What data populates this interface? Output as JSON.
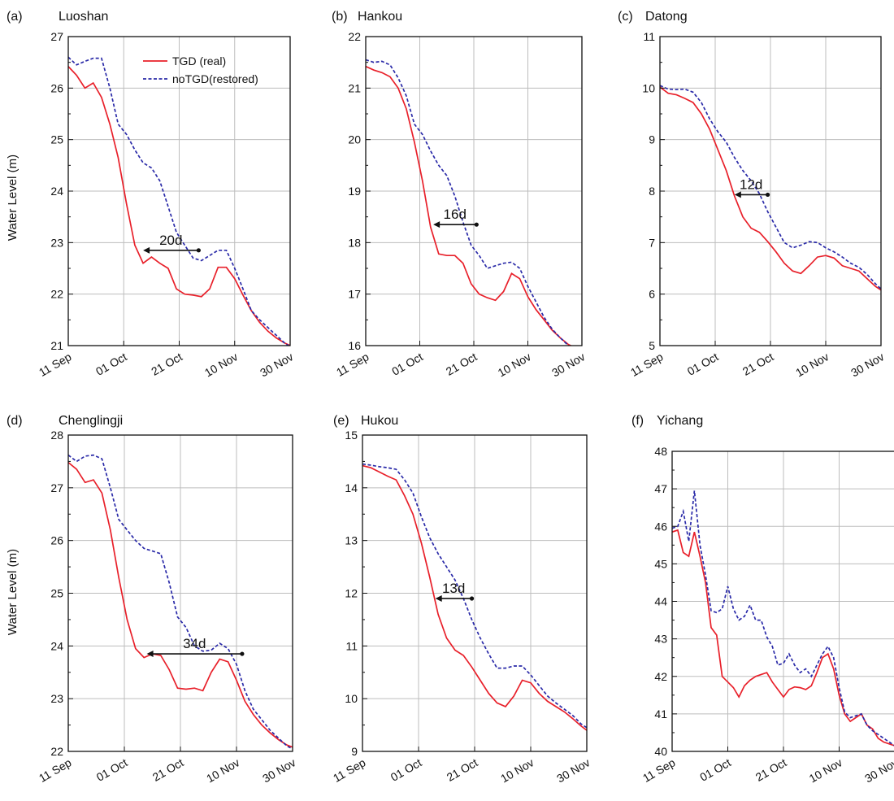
{
  "figure": {
    "ylabel": "Water Level (m)"
  },
  "chart_data": [
    {
      "panel": "(a)",
      "title": "Luoshan",
      "type": "line",
      "xlim": [
        0,
        80
      ],
      "ylim": [
        21,
        27
      ],
      "xticks": [
        "11 Sep",
        "01 Oct",
        "21 Oct",
        "10 Nov",
        "30 Nov"
      ],
      "yticks": [
        21,
        22,
        23,
        24,
        25,
        26,
        27
      ],
      "legend": "top-right",
      "series": [
        {
          "name": "TGD (real)",
          "color": "#e8202a",
          "dash": false,
          "x": [
            0,
            3,
            6,
            9,
            12,
            15,
            18,
            21,
            24,
            27,
            30,
            33,
            36,
            39,
            42,
            45,
            48,
            51,
            54,
            57,
            60,
            63,
            66,
            69,
            72,
            75,
            78,
            80
          ],
          "y": [
            26.42,
            26.25,
            26.0,
            26.1,
            25.82,
            25.3,
            24.65,
            23.75,
            22.95,
            22.6,
            22.72,
            22.6,
            22.5,
            22.1,
            22.0,
            21.98,
            21.95,
            22.1,
            22.52,
            22.52,
            22.3,
            21.98,
            21.68,
            21.45,
            21.28,
            21.15,
            21.05,
            21.0
          ]
        },
        {
          "name": "noTGD(restored)",
          "color": "#2a2aa8",
          "dash": true,
          "x": [
            0,
            3,
            6,
            9,
            12,
            15,
            18,
            21,
            24,
            27,
            30,
            33,
            36,
            39,
            42,
            45,
            48,
            51,
            54,
            57,
            60,
            63,
            66,
            69,
            72,
            75,
            78,
            80
          ],
          "y": [
            26.6,
            26.45,
            26.52,
            26.58,
            26.58,
            26.0,
            25.3,
            25.1,
            24.8,
            24.55,
            24.45,
            24.2,
            23.7,
            23.2,
            22.95,
            22.7,
            22.65,
            22.75,
            22.85,
            22.85,
            22.5,
            22.1,
            21.68,
            21.5,
            21.35,
            21.2,
            21.05,
            20.98
          ]
        }
      ],
      "annotation": {
        "label": "20d",
        "x_start": 27,
        "x_end": 47,
        "y": 22.85
      }
    },
    {
      "panel": "(b)",
      "title": "Hankou",
      "type": "line",
      "xlim": [
        0,
        80
      ],
      "ylim": [
        16,
        22
      ],
      "xticks": [
        "11 Sep",
        "01 Oct",
        "21 Oct",
        "10 Nov",
        "30 Nov"
      ],
      "yticks": [
        16,
        17,
        18,
        19,
        20,
        21,
        22
      ],
      "series": [
        {
          "name": "TGD (real)",
          "color": "#e8202a",
          "dash": false,
          "x": [
            0,
            3,
            6,
            9,
            12,
            15,
            18,
            21,
            24,
            27,
            30,
            33,
            36,
            39,
            42,
            45,
            48,
            51,
            54,
            57,
            60,
            63,
            66,
            69,
            72,
            75,
            78,
            80
          ],
          "y": [
            21.42,
            21.35,
            21.3,
            21.22,
            21.0,
            20.6,
            19.95,
            19.2,
            18.3,
            17.78,
            17.75,
            17.75,
            17.6,
            17.2,
            17.0,
            16.93,
            16.88,
            17.05,
            17.4,
            17.3,
            16.95,
            16.7,
            16.5,
            16.3,
            16.15,
            16.02,
            15.95,
            15.95
          ]
        },
        {
          "name": "noTGD(restored)",
          "color": "#2a2aa8",
          "dash": true,
          "x": [
            0,
            3,
            6,
            9,
            12,
            15,
            18,
            21,
            24,
            27,
            30,
            33,
            36,
            39,
            42,
            45,
            48,
            51,
            54,
            57,
            60,
            63,
            66,
            69,
            72,
            75,
            78,
            80
          ],
          "y": [
            21.55,
            21.5,
            21.52,
            21.45,
            21.2,
            20.85,
            20.3,
            20.1,
            19.78,
            19.5,
            19.3,
            18.9,
            18.4,
            17.95,
            17.75,
            17.5,
            17.55,
            17.6,
            17.62,
            17.5,
            17.15,
            16.85,
            16.55,
            16.32,
            16.15,
            16.0,
            15.95,
            15.93
          ]
        }
      ],
      "annotation": {
        "label": "16d",
        "x_start": 25,
        "x_end": 41,
        "y": 18.35
      }
    },
    {
      "panel": "(c)",
      "title": "Datong",
      "type": "line",
      "xlim": [
        0,
        80
      ],
      "ylim": [
        5,
        11
      ],
      "xticks": [
        "11 Sep",
        "01 Oct",
        "21 Oct",
        "10 Nov",
        "30 Nov"
      ],
      "yticks": [
        5,
        6,
        7,
        8,
        9,
        10,
        11
      ],
      "series": [
        {
          "name": "TGD (real)",
          "color": "#e8202a",
          "dash": false,
          "x": [
            0,
            3,
            6,
            9,
            12,
            15,
            18,
            21,
            24,
            27,
            30,
            33,
            36,
            39,
            42,
            45,
            48,
            51,
            54,
            57,
            60,
            63,
            66,
            69,
            72,
            75,
            78,
            80
          ],
          "y": [
            10.02,
            9.9,
            9.87,
            9.8,
            9.72,
            9.5,
            9.2,
            8.8,
            8.4,
            7.9,
            7.5,
            7.28,
            7.2,
            7.02,
            6.82,
            6.6,
            6.45,
            6.4,
            6.55,
            6.72,
            6.75,
            6.7,
            6.55,
            6.5,
            6.45,
            6.3,
            6.15,
            6.08
          ]
        },
        {
          "name": "noTGD(restored)",
          "color": "#2a2aa8",
          "dash": true,
          "x": [
            0,
            3,
            6,
            9,
            12,
            15,
            18,
            21,
            24,
            27,
            30,
            33,
            36,
            39,
            42,
            45,
            48,
            51,
            54,
            57,
            60,
            63,
            66,
            69,
            72,
            75,
            78,
            80
          ],
          "y": [
            10.05,
            9.98,
            9.97,
            9.98,
            9.92,
            9.72,
            9.4,
            9.15,
            8.95,
            8.65,
            8.4,
            8.2,
            7.95,
            7.6,
            7.3,
            7.0,
            6.9,
            6.95,
            7.02,
            7.0,
            6.9,
            6.82,
            6.72,
            6.6,
            6.52,
            6.38,
            6.2,
            6.1
          ]
        }
      ],
      "annotation": {
        "label": "12d",
        "x_start": 27,
        "x_end": 39,
        "y": 7.93
      }
    },
    {
      "panel": "(d)",
      "title": "Chenglingji",
      "type": "line",
      "xlim": [
        0,
        80
      ],
      "ylim": [
        22,
        28
      ],
      "xticks": [
        "11 Sep",
        "01 Oct",
        "21 Oct",
        "10 Nov",
        "30 Nov"
      ],
      "yticks": [
        22,
        23,
        24,
        25,
        26,
        27,
        28
      ],
      "series": [
        {
          "name": "TGD (real)",
          "color": "#e8202a",
          "dash": false,
          "x": [
            0,
            3,
            6,
            9,
            12,
            15,
            18,
            21,
            24,
            27,
            30,
            33,
            36,
            39,
            42,
            45,
            48,
            51,
            54,
            57,
            60,
            63,
            66,
            69,
            72,
            75,
            78,
            80
          ],
          "y": [
            27.48,
            27.35,
            27.1,
            27.15,
            26.9,
            26.2,
            25.3,
            24.5,
            23.95,
            23.78,
            23.85,
            23.82,
            23.55,
            23.2,
            23.18,
            23.2,
            23.15,
            23.5,
            23.75,
            23.7,
            23.35,
            22.95,
            22.7,
            22.5,
            22.35,
            22.22,
            22.12,
            22.08
          ]
        },
        {
          "name": "noTGD(restored)",
          "color": "#2a2aa8",
          "dash": true,
          "x": [
            0,
            3,
            6,
            9,
            12,
            15,
            18,
            21,
            24,
            27,
            30,
            33,
            36,
            39,
            42,
            45,
            48,
            51,
            54,
            57,
            60,
            63,
            66,
            69,
            72,
            75,
            78,
            80
          ],
          "y": [
            27.62,
            27.5,
            27.6,
            27.62,
            27.55,
            27.0,
            26.4,
            26.2,
            26.0,
            25.85,
            25.8,
            25.75,
            25.2,
            24.55,
            24.35,
            24.0,
            23.9,
            23.92,
            24.05,
            23.95,
            23.65,
            23.15,
            22.8,
            22.6,
            22.4,
            22.25,
            22.1,
            22.05
          ]
        }
      ],
      "annotation": {
        "label": "34d",
        "x_start": 28,
        "x_end": 62,
        "y": 23.85
      }
    },
    {
      "panel": "(e)",
      "title": "Hukou",
      "type": "line",
      "xlim": [
        0,
        80
      ],
      "ylim": [
        9,
        15
      ],
      "xticks": [
        "11 Sep",
        "01 Oct",
        "21 Oct",
        "10 Nov",
        "30 Nov"
      ],
      "yticks": [
        9,
        10,
        11,
        12,
        13,
        14,
        15
      ],
      "series": [
        {
          "name": "TGD (real)",
          "color": "#e8202a",
          "dash": false,
          "x": [
            0,
            3,
            6,
            9,
            12,
            15,
            18,
            21,
            24,
            27,
            30,
            33,
            36,
            39,
            42,
            45,
            48,
            51,
            54,
            57,
            60,
            63,
            66,
            69,
            72,
            75,
            78,
            80
          ],
          "y": [
            14.42,
            14.38,
            14.3,
            14.22,
            14.15,
            13.85,
            13.5,
            12.95,
            12.3,
            11.6,
            11.15,
            10.92,
            10.82,
            10.6,
            10.35,
            10.1,
            9.92,
            9.85,
            10.05,
            10.35,
            10.3,
            10.1,
            9.95,
            9.85,
            9.75,
            9.62,
            9.48,
            9.4
          ]
        },
        {
          "name": "noTGD(restored)",
          "color": "#2a2aa8",
          "dash": true,
          "x": [
            0,
            3,
            6,
            9,
            12,
            15,
            18,
            21,
            24,
            27,
            30,
            33,
            36,
            39,
            42,
            45,
            48,
            51,
            54,
            57,
            60,
            63,
            66,
            69,
            72,
            75,
            78,
            80
          ],
          "y": [
            14.45,
            14.43,
            14.4,
            14.38,
            14.35,
            14.15,
            13.9,
            13.45,
            13.05,
            12.75,
            12.5,
            12.25,
            11.9,
            11.5,
            11.15,
            10.85,
            10.58,
            10.58,
            10.62,
            10.62,
            10.45,
            10.25,
            10.05,
            9.92,
            9.8,
            9.68,
            9.52,
            9.45
          ]
        }
      ],
      "annotation": {
        "label": "13d",
        "x_start": 26,
        "x_end": 39,
        "y": 11.9
      }
    },
    {
      "panel": "(f)",
      "title": "Yichang",
      "type": "line",
      "xlim": [
        0,
        80
      ],
      "ylim": [
        40,
        48
      ],
      "xticks": [
        "11 Sep",
        "01 Oct",
        "21 Oct",
        "10 Nov",
        "30 Nov"
      ],
      "yticks": [
        40,
        41,
        42,
        43,
        44,
        45,
        46,
        47,
        48
      ],
      "series": [
        {
          "name": "TGD (real)",
          "color": "#e8202a",
          "dash": false,
          "x": [
            0,
            2,
            4,
            6,
            8,
            10,
            12,
            14,
            16,
            18,
            20,
            22,
            24,
            26,
            28,
            30,
            32,
            34,
            36,
            38,
            40,
            42,
            44,
            46,
            48,
            50,
            52,
            54,
            56,
            58,
            60,
            62,
            64,
            66,
            68,
            70,
            72,
            74,
            76,
            78,
            80
          ],
          "y": [
            45.85,
            45.9,
            45.3,
            45.2,
            45.85,
            45.2,
            44.5,
            43.3,
            43.1,
            42.0,
            41.85,
            41.7,
            41.45,
            41.75,
            41.9,
            42.0,
            42.05,
            42.1,
            41.85,
            41.65,
            41.45,
            41.65,
            41.72,
            41.7,
            41.65,
            41.75,
            42.1,
            42.5,
            42.6,
            42.2,
            41.5,
            41.0,
            40.8,
            40.9,
            41.0,
            40.7,
            40.6,
            40.35,
            40.25,
            40.2,
            40.15
          ]
        },
        {
          "name": "noTGD(restored)",
          "color": "#2a2aa8",
          "dash": true,
          "x": [
            0,
            2,
            4,
            6,
            8,
            10,
            12,
            14,
            16,
            18,
            20,
            22,
            24,
            26,
            28,
            30,
            32,
            34,
            36,
            38,
            40,
            42,
            44,
            46,
            48,
            50,
            52,
            54,
            56,
            58,
            60,
            62,
            64,
            66,
            68,
            70,
            72,
            74,
            76,
            78,
            80
          ],
          "y": [
            45.95,
            46.0,
            46.4,
            45.6,
            46.95,
            45.5,
            44.7,
            43.75,
            43.7,
            43.8,
            44.4,
            43.8,
            43.5,
            43.6,
            43.9,
            43.5,
            43.5,
            43.05,
            42.8,
            42.3,
            42.35,
            42.6,
            42.3,
            42.1,
            42.2,
            42.0,
            42.3,
            42.6,
            42.8,
            42.5,
            41.7,
            41.05,
            40.9,
            40.95,
            41.0,
            40.7,
            40.55,
            40.45,
            40.35,
            40.25,
            40.15
          ]
        }
      ]
    }
  ]
}
